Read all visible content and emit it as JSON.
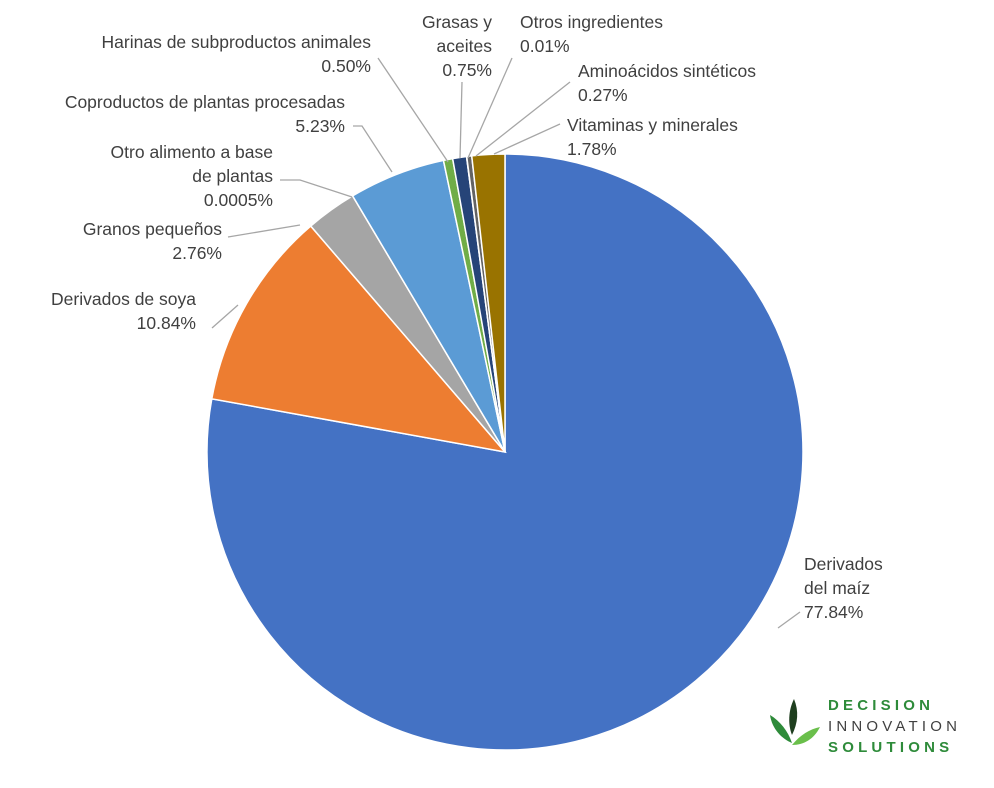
{
  "chart_data": {
    "type": "pie",
    "title": "",
    "slices": [
      {
        "name": "Derivados del maíz",
        "lines": [
          "Derivados",
          "del maíz",
          "77.84%"
        ],
        "value": 77.84,
        "color": "#4472c4"
      },
      {
        "name": "Derivados de soya",
        "lines": [
          "Derivados de soya",
          "10.84%"
        ],
        "value": 10.84,
        "color": "#ed7d31"
      },
      {
        "name": "Granos pequeños",
        "lines": [
          "Granos pequeños",
          "2.76%"
        ],
        "value": 2.76,
        "color": "#a5a5a5"
      },
      {
        "name": "Otro alimento a base de plantas",
        "lines": [
          "Otro alimento a base",
          "de plantas",
          "0.0005%"
        ],
        "value": 0.0005,
        "color": "#ffc000"
      },
      {
        "name": "Coproductos de plantas procesadas",
        "lines": [
          "Coproductos de plantas procesadas",
          "5.23%"
        ],
        "value": 5.23,
        "color": "#5b9bd5"
      },
      {
        "name": "Harinas de subproductos animales",
        "lines": [
          "Harinas de subproductos animales",
          "0.50%"
        ],
        "value": 0.5,
        "color": "#70ad47"
      },
      {
        "name": "Grasas y aceites",
        "lines": [
          "Grasas y",
          "aceites",
          "0.75%"
        ],
        "value": 0.75,
        "color": "#264478"
      },
      {
        "name": "Otros ingredientes",
        "lines": [
          "Otros ingredientes",
          "0.01%"
        ],
        "value": 0.01,
        "color": "#9e480e"
      },
      {
        "name": "Aminoácidos sintéticos",
        "lines": [
          "Aminoácidos sintéticos",
          "0.27%"
        ],
        "value": 0.27,
        "color": "#636363"
      },
      {
        "name": "Vitaminas y minerales",
        "lines": [
          "Vitaminas y minerales",
          "1.78%"
        ],
        "value": 1.78,
        "color": "#997300"
      }
    ],
    "start_angle_deg": 0,
    "direction": "clockwise",
    "legend": "none",
    "data_labels": "outside with leader lines"
  },
  "logo": {
    "line1": "DECISION",
    "line2": "INNOVATION",
    "line3": "SOLUTIONS",
    "colors": {
      "green": "#2e8b3a",
      "gray": "#404040",
      "leaf_dark": "#1f3f1f"
    }
  }
}
